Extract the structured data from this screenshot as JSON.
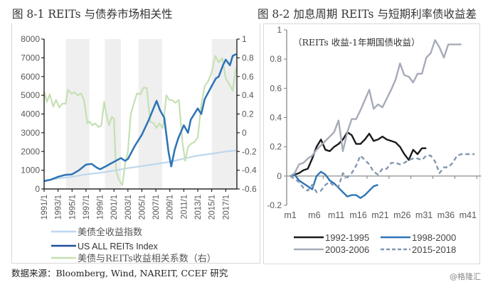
{
  "titles": {
    "left": "图 8-1 REITs 与债券市场相关性",
    "right": "图 8-2 加息周期 REITs 与短期利率债收益差"
  },
  "source": "数据来源：Bloomberg, Wind, NAREIT, CCEF 研究",
  "watermark": "@格隆汇",
  "chart_data": [
    {
      "type": "line",
      "title": "图 8-1 REITs 与债券市场相关性",
      "xlabel": "",
      "ylabel": "",
      "x_tick_labels": [
        "1991/1",
        "1993/1",
        "1995/1",
        "1997/1",
        "1999/1",
        "2001/1",
        "2003/1",
        "2005/1",
        "2007/1",
        "2009/1",
        "2011/1",
        "2013/1",
        "2015/1",
        "2017/1"
      ],
      "y_left": {
        "range": [
          0,
          8000
        ],
        "ticks": [
          0,
          1000,
          2000,
          3000,
          4000,
          5000,
          6000,
          7000,
          8000
        ],
        "tick_labels": [
          "0",
          "1000",
          "2000",
          "3000",
          "4000",
          "5000",
          "6000",
          "7000",
          "8000"
        ]
      },
      "y_right": {
        "range": [
          -0.6,
          1
        ],
        "ticks": [
          -0.6,
          -0.4,
          -0.2,
          0,
          0.2,
          0.4,
          0.6,
          0.8,
          1
        ],
        "tick_labels": [
          "-0.6",
          "-0.4",
          "-0.2",
          "0",
          "0.2",
          "0.4",
          "0.6",
          "0.8",
          "1"
        ]
      },
      "x_range": [
        1991,
        2018.6
      ],
      "shaded_periods": [
        [
          1994.1,
          1997.5
        ],
        [
          1999.7,
          2002.0
        ],
        [
          2004.5,
          2007.9
        ],
        [
          2015.0,
          2018.6
        ]
      ],
      "grid": false,
      "legend_position": "bottom",
      "series": [
        {
          "name": "美债全收益指数",
          "axis": "left",
          "color": "#bdd7ee",
          "x": [
            1991,
            1993,
            1995,
            1997,
            1999,
            2001,
            2003,
            2005,
            2007,
            2009,
            2011,
            2013,
            2015,
            2017,
            2018.5
          ],
          "values": [
            430,
            560,
            650,
            780,
            860,
            980,
            1110,
            1220,
            1330,
            1450,
            1620,
            1780,
            1880,
            2000,
            2050
          ]
        },
        {
          "name": "US ALL REITs Index",
          "axis": "left",
          "color": "#2e75b6",
          "x": [
            1991,
            1992,
            1993,
            1994,
            1995,
            1996,
            1997,
            1997.8,
            1998.5,
            1999,
            1999.8,
            2000.5,
            2001,
            2002,
            2002.6,
            2003,
            2004,
            2005,
            2006,
            2007.1,
            2007.6,
            2008.2,
            2008.8,
            2009.2,
            2009.7,
            2010.2,
            2011,
            2011.6,
            2012,
            2013,
            2013.5,
            2014,
            2015,
            2015.6,
            2016,
            2016.6,
            2017,
            2017.6,
            2018,
            2018.5
          ],
          "values": [
            420,
            500,
            650,
            750,
            780,
            1000,
            1300,
            1340,
            1150,
            1050,
            1200,
            1350,
            1450,
            1650,
            1500,
            1600,
            2300,
            2900,
            3700,
            4700,
            4200,
            3800,
            2000,
            1200,
            2100,
            2700,
            3400,
            3000,
            3700,
            4300,
            4000,
            4800,
            5500,
            5900,
            6000,
            6600,
            6900,
            6600,
            7100,
            7200
          ]
        },
        {
          "name": "美债与REITs收益相关系数（右）",
          "axis": "right",
          "color": "#c5e0b4",
          "x": [
            1991,
            1991.4,
            1991.8,
            1992.3,
            1992.7,
            1993.2,
            1993.6,
            1994.1,
            1994.4,
            1994.9,
            1995.4,
            1995.8,
            1996.3,
            1996.7,
            1997.2,
            1997.5,
            1997.9,
            1998.3,
            1998.8,
            1999.2,
            1999.6,
            1999.9,
            2000.3,
            2000.7,
            2001.0,
            2001.3,
            2001.7,
            2002.2,
            2002.6,
            2003.0,
            2003.4,
            2003.8,
            2004.3,
            2004.8,
            2005.2,
            2005.7,
            2006.2,
            2006.7,
            2007.1,
            2007.5,
            2008.0,
            2008.5,
            2008.9,
            2009.3,
            2009.8,
            2010.3,
            2010.8,
            2011.2,
            2011.6,
            2012.0,
            2012.5,
            2013.0,
            2013.5,
            2014.0,
            2014.5,
            2015.0,
            2015.5,
            2016.0,
            2016.5,
            2017.0,
            2017.5,
            2018.0,
            2018.5
          ],
          "values": [
            0.44,
            0.33,
            0.41,
            0.28,
            0.35,
            0.27,
            0.31,
            0.31,
            0.46,
            0.42,
            0.43,
            0.4,
            0.42,
            0.35,
            0.1,
            0.12,
            0.08,
            0.1,
            0.06,
            0.08,
            0.33,
            0.2,
            0.08,
            0.17,
            0.15,
            -0.4,
            -0.5,
            -0.56,
            -0.33,
            -0.2,
            0.2,
            0.3,
            0.42,
            0.41,
            0.48,
            0.48,
            0.12,
            0.1,
            0.05,
            0.1,
            0.05,
            0.4,
            0.35,
            0.35,
            0.32,
            0.35,
            -0.1,
            -0.3,
            -0.15,
            -0.12,
            -0.1,
            -0.05,
            0.3,
            0.5,
            0.55,
            0.65,
            0.82,
            0.75,
            0.8,
            0.58,
            0.52,
            0.45,
            0.7
          ]
        }
      ]
    },
    {
      "type": "line",
      "title": "图 8-2 加息周期 REITs 与短期利率债收益差",
      "annotation": "（REITs 收益-1年期国债收益）",
      "xlabel": "",
      "ylabel": "",
      "x_tick_labels": [
        "m1",
        "m6",
        "m11",
        "m16",
        "m21",
        "m26",
        "m31",
        "m36",
        "m41"
      ],
      "x_range": [
        1,
        44
      ],
      "y": {
        "range": [
          -0.2,
          1
        ],
        "ticks": [
          -0.2,
          0,
          0.2,
          0.4,
          0.6,
          0.8,
          1
        ],
        "tick_labels": [
          "-0.2",
          "0",
          "0.2",
          "0.4",
          "0.6",
          "0.8",
          "1"
        ]
      },
      "grid": false,
      "legend_position": "bottom",
      "series": [
        {
          "name": "1992-1995",
          "color": "#1a1a1a",
          "dash": false,
          "x": [
            1,
            2,
            3,
            4,
            5,
            6,
            7,
            8,
            9,
            10,
            11,
            12,
            13,
            14,
            15,
            16,
            17,
            18,
            19,
            20,
            21,
            22,
            23,
            24,
            25,
            26,
            27,
            28,
            29,
            30,
            31,
            32
          ],
          "values": [
            0,
            0.01,
            0.02,
            0.04,
            0.05,
            0.12,
            0.2,
            0.25,
            0.18,
            0.17,
            0.2,
            0.22,
            0.25,
            0.3,
            0.28,
            0.22,
            0.22,
            0.25,
            0.29,
            0.24,
            0.25,
            0.27,
            0.25,
            0.24,
            0.23,
            0.2,
            0.15,
            0.11,
            0.18,
            0.15,
            0.19,
            0.19
          ]
        },
        {
          "name": "1998-2000",
          "color": "#2e75b6",
          "dash": false,
          "x": [
            1,
            2,
            3,
            4,
            5,
            6,
            7,
            8,
            9,
            10,
            11,
            12,
            13,
            14,
            15,
            16,
            17,
            18,
            19,
            20,
            21
          ],
          "values": [
            0,
            0.01,
            -0.03,
            -0.05,
            -0.07,
            -0.09,
            0.0,
            0.03,
            0.01,
            -0.03,
            -0.05,
            -0.08,
            -0.11,
            -0.14,
            -0.13,
            -0.13,
            -0.15,
            -0.13,
            -0.1,
            -0.07,
            -0.06
          ]
        },
        {
          "name": "2003-2006",
          "color": "#a6abb8",
          "dash": false,
          "x": [
            1,
            2,
            3,
            4,
            5,
            6,
            7,
            8,
            9,
            10,
            11,
            12,
            13,
            14,
            15,
            16,
            17,
            18,
            19,
            20,
            21,
            22,
            23,
            24,
            25,
            26,
            27,
            28,
            29,
            30,
            31,
            32,
            33,
            34,
            35,
            36,
            37,
            38,
            39,
            40
          ],
          "values": [
            0,
            0.02,
            0.08,
            0.09,
            0.12,
            0.14,
            0.18,
            0.21,
            0.24,
            0.27,
            0.3,
            0.38,
            0.17,
            0.3,
            0.39,
            0.39,
            0.45,
            0.52,
            0.59,
            0.46,
            0.49,
            0.47,
            0.53,
            0.59,
            0.66,
            0.77,
            0.69,
            0.68,
            0.64,
            0.7,
            0.7,
            0.81,
            0.84,
            0.93,
            0.88,
            0.81,
            0.9,
            0.9,
            0.9,
            0.9
          ]
        },
        {
          "name": "2015-2018",
          "color": "#8497b0",
          "dash": true,
          "x": [
            1,
            2,
            3,
            4,
            5,
            6,
            7,
            8,
            9,
            10,
            11,
            12,
            13,
            14,
            15,
            16,
            17,
            18,
            19,
            20,
            21,
            22,
            23,
            24,
            25,
            26,
            27,
            28,
            29,
            30,
            31,
            32,
            33,
            34,
            35,
            36,
            37,
            38,
            39,
            40,
            41,
            42,
            43
          ],
          "values": [
            0,
            -0.02,
            -0.04,
            -0.08,
            -0.1,
            -0.06,
            -0.11,
            -0.1,
            -0.06,
            -0.04,
            -0.07,
            -0.07,
            0.02,
            -0.01,
            0.02,
            0.07,
            0.14,
            0.11,
            0.08,
            0.03,
            0.01,
            0.05,
            0.05,
            0.09,
            0.09,
            0.08,
            0.09,
            0.11,
            0.12,
            0.12,
            0.11,
            0.14,
            0.14,
            0.1,
            0.02,
            0.06,
            0.06,
            0.09,
            0.14,
            0.15,
            0.15,
            0.15,
            0.15
          ]
        }
      ]
    }
  ]
}
